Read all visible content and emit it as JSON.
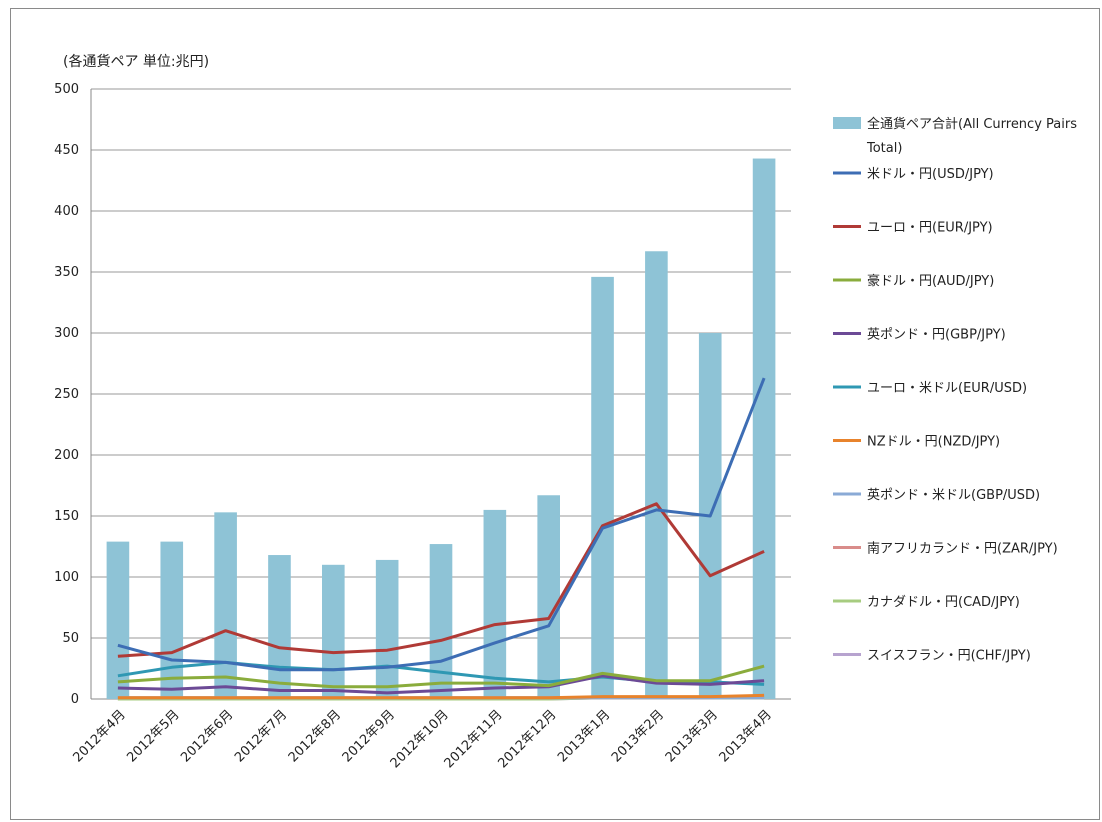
{
  "chart_data": {
    "type": "bar",
    "unit_label": "(各通貨ペア 単位:兆円)",
    "categories": [
      "2012年4月",
      "2012年5月",
      "2012年6月",
      "2012年7月",
      "2012年8月",
      "2012年9月",
      "2012年10月",
      "2012年11月",
      "2012年12月",
      "2013年1月",
      "2013年2月",
      "2013年3月",
      "2013年4月"
    ],
    "ylim": [
      0,
      500
    ],
    "yticks": [
      0,
      50,
      100,
      150,
      200,
      250,
      300,
      350,
      400,
      450,
      500
    ],
    "grid": true,
    "legend_position": "right",
    "bar_series": {
      "name": "全通貨ペア合計(All Currency Pairs Total)",
      "legend_lines": [
        "全通貨ペア合計(All Currency Pairs",
        "Total)"
      ],
      "color": "#8ec3d6",
      "values": [
        129,
        129,
        153,
        118,
        110,
        114,
        127,
        155,
        167,
        346,
        367,
        300,
        443
      ]
    },
    "line_series": [
      {
        "name": "米ドル・円(USD/JPY)",
        "color": "#3d6db4",
        "values": [
          44,
          32,
          30,
          24,
          24,
          26,
          31,
          46,
          60,
          140,
          155,
          150,
          263
        ]
      },
      {
        "name": "ユーロ・円(EUR/JPY)",
        "color": "#b03a36",
        "values": [
          35,
          38,
          56,
          42,
          38,
          40,
          48,
          61,
          66,
          142,
          160,
          101,
          121
        ]
      },
      {
        "name": "豪ドル・円(AUD/JPY)",
        "color": "#8aac3c",
        "values": [
          14,
          17,
          18,
          13,
          10,
          10,
          13,
          13,
          11,
          21,
          15,
          15,
          27
        ]
      },
      {
        "name": "英ポンド・円(GBP/JPY)",
        "color": "#6c4a96",
        "values": [
          9,
          8,
          10,
          7,
          7,
          5,
          7,
          9,
          10,
          19,
          13,
          12,
          15
        ]
      },
      {
        "name": "ユーロ・米ドル(EUR/USD)",
        "color": "#2f98b3",
        "values": [
          19,
          26,
          30,
          26,
          24,
          27,
          22,
          17,
          14,
          18,
          14,
          14,
          12
        ]
      },
      {
        "name": "NZドル・円(NZD/JPY)",
        "color": "#e8832c",
        "values": [
          1,
          1,
          1,
          1,
          1,
          1,
          1,
          1,
          1,
          2,
          2,
          2,
          3
        ]
      },
      {
        "name": "英ポンド・米ドル(GBP/USD)",
        "color": "#8aaad6",
        "values": [
          1,
          1,
          1,
          1,
          1,
          1,
          1,
          1,
          1,
          1,
          1,
          1,
          1
        ]
      },
      {
        "name": "南アフリカランド・円(ZAR/JPY)",
        "color": "#d98c8a",
        "values": [
          1,
          1,
          1,
          1,
          1,
          1,
          1,
          1,
          1,
          1,
          1,
          1,
          2
        ]
      },
      {
        "name": "カナダドル・円(CAD/JPY)",
        "color": "#a7cc80",
        "values": [
          0,
          0,
          0,
          0,
          0,
          0,
          0,
          0,
          0,
          1,
          1,
          1,
          1
        ]
      },
      {
        "name": "スイスフラン・円(CHF/JPY)",
        "color": "#b7a3cf",
        "values": [
          0,
          0,
          0,
          0,
          0,
          0,
          0,
          0,
          0,
          1,
          1,
          1,
          1
        ]
      }
    ]
  }
}
